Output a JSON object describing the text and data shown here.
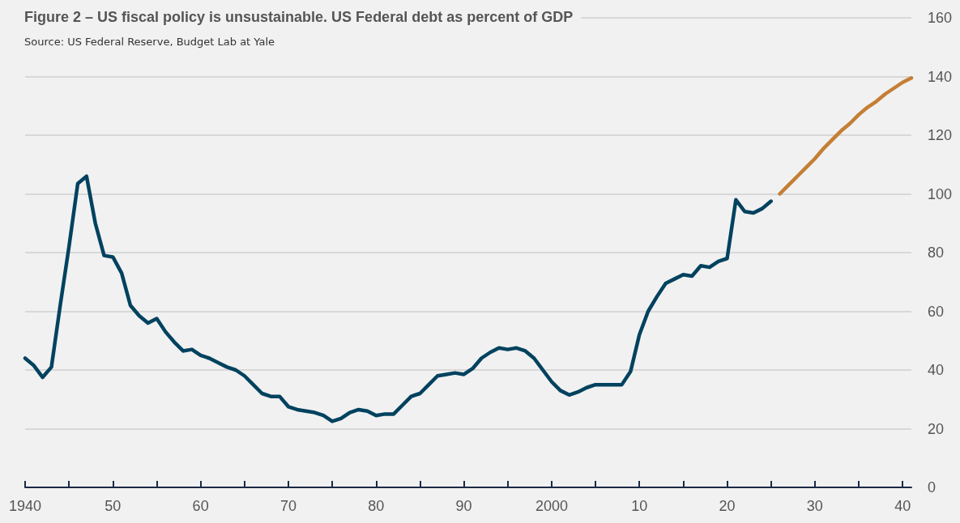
{
  "chart_data": {
    "type": "line",
    "title": "Figure 2 – US fiscal policy is unsustainable. US Federal debt as percent of GDP",
    "subtitle": "Source: US Federal Reserve, Budget Lab at Yale",
    "series": [
      {
        "color": "#00425f",
        "x": [
          1940,
          1941,
          1942,
          1943,
          1944,
          1945,
          1946,
          1947,
          1948,
          1949,
          1950,
          1951,
          1952,
          1953,
          1954,
          1955,
          1956,
          1957,
          1958,
          1959,
          1960,
          1961,
          1962,
          1963,
          1964,
          1965,
          1966,
          1967,
          1968,
          1969,
          1970,
          1971,
          1972,
          1973,
          1974,
          1975,
          1976,
          1977,
          1978,
          1979,
          1980,
          1981,
          1982,
          1983,
          1984,
          1985,
          1986,
          1987,
          1988,
          1989,
          1990,
          1991,
          1992,
          1993,
          1994,
          1995,
          1996,
          1997,
          1998,
          1999,
          2000,
          2001,
          2002,
          2003,
          2004,
          2005,
          2006,
          2007,
          2008,
          2009,
          2010,
          2011,
          2012,
          2013,
          2014,
          2015,
          2016,
          2017,
          2018,
          2019,
          2020,
          2021,
          2022,
          2023,
          2024,
          2025
        ],
        "values": [
          44,
          41.5,
          37.5,
          41,
          62,
          82,
          103.5,
          106,
          90,
          79,
          78.5,
          73,
          62,
          58.5,
          56,
          57.5,
          53,
          49.5,
          46.5,
          47,
          45,
          44,
          42.5,
          41,
          40,
          38,
          35,
          32,
          31,
          31,
          27.5,
          26.5,
          26,
          25.5,
          24.5,
          22.5,
          23.5,
          25.5,
          26.5,
          26,
          24.5,
          25,
          25,
          28,
          31,
          32,
          35,
          38,
          38.5,
          39,
          38.5,
          40.5,
          44,
          46,
          47.5,
          47,
          47.5,
          46.5,
          44,
          40,
          36,
          33,
          31.5,
          32.5,
          34,
          35,
          35,
          35,
          35,
          39.5,
          52,
          60,
          65,
          69.5,
          71,
          72.5,
          72,
          75.5,
          75,
          77,
          78,
          98,
          94,
          93.5,
          95,
          97.5
        ]
      },
      {
        "color": "#c47f35",
        "x": [
          2026,
          2027,
          2028,
          2029,
          2030,
          2031,
          2032,
          2033,
          2034,
          2035,
          2036,
          2037,
          2038,
          2039,
          2040,
          2041
        ],
        "values": [
          100,
          103,
          106,
          109,
          112,
          115.5,
          118.5,
          121.5,
          124,
          127,
          129.5,
          131.5,
          134,
          136,
          138,
          139.5
        ]
      }
    ],
    "xlim": [
      1940,
      2041
    ],
    "xticks": [
      1940,
      {
        "value": 1945,
        "label": null
      },
      {
        "value": 1950,
        "label": "50"
      },
      {
        "value": 1955,
        "label": null
      },
      {
        "value": 1960,
        "label": "60"
      },
      {
        "value": 1965,
        "label": null
      },
      {
        "value": 1970,
        "label": "70"
      },
      {
        "value": 1975,
        "label": null
      },
      {
        "value": 1980,
        "label": "80"
      },
      {
        "value": 1985,
        "label": null
      },
      {
        "value": 1990,
        "label": "90"
      },
      {
        "value": 1995,
        "label": null
      },
      2000,
      {
        "value": 2005,
        "label": null
      },
      {
        "value": 2010,
        "label": "10"
      },
      {
        "value": 2015,
        "label": null
      },
      {
        "value": 2020,
        "label": "20"
      },
      {
        "value": 2025,
        "label": null
      },
      {
        "value": 2030,
        "label": "30"
      },
      {
        "value": 2035,
        "label": null
      },
      {
        "value": 2040,
        "label": "40"
      }
    ],
    "ylim": [
      0,
      160
    ],
    "yticks": [
      0,
      20,
      40,
      60,
      80,
      100,
      120,
      140,
      160
    ],
    "grid": "y",
    "marker": "none",
    "line_style": "solid"
  }
}
